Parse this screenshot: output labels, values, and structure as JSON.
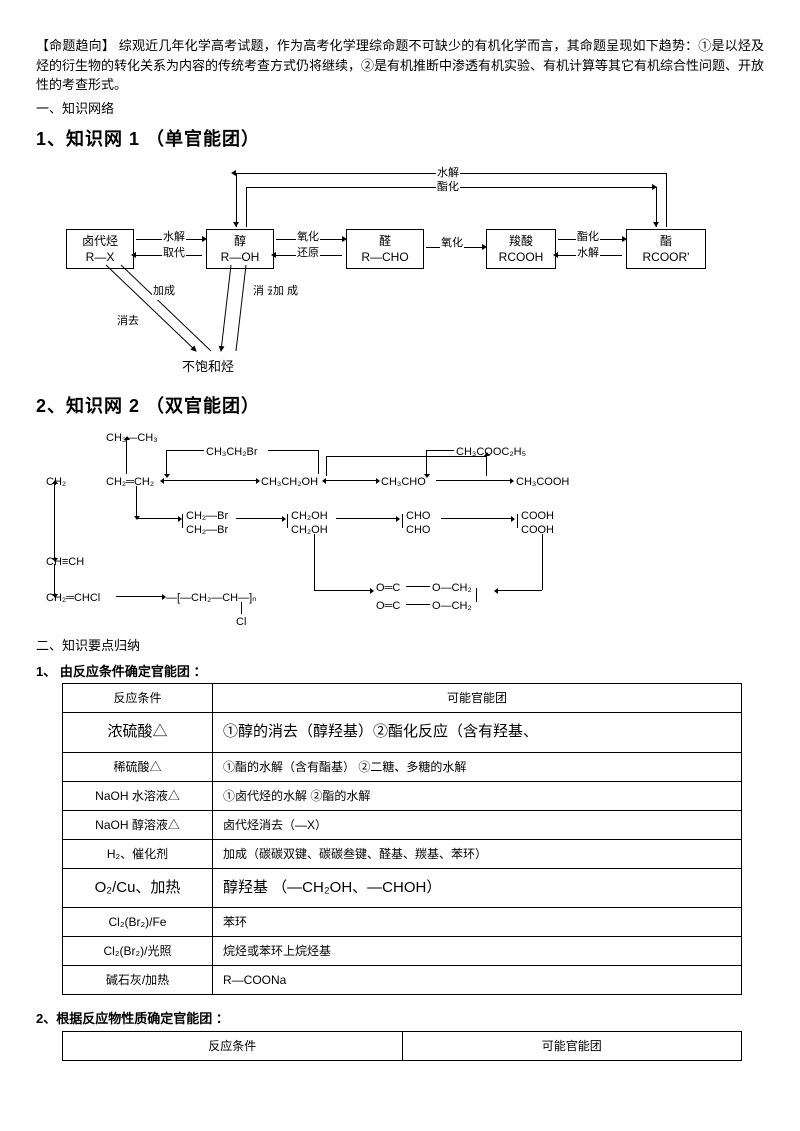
{
  "intro": "【命题趋向】 综观近几年化学高考试题，作为高考化学理综命题不可缺少的有机化学而言，其命题呈现如下趋势：①是以烃及烃的衍生物的转化关系为内容的传统考查方式仍将继续，②是有机推断中渗透有机实验、有机计算等其它有机综合性问题、开放性的考查形式。",
  "sec1_label": "一、知识网络",
  "net1_title": "1、知识网 1 （单官能团）",
  "net2_title": "2、知识网 2 （双官能团）",
  "boxes": {
    "halide_top": "卤代烃",
    "halide_bot": "R—X",
    "alcohol_top": "醇",
    "alcohol_bot": "R—OH",
    "aldehyde_top": "醛",
    "aldehyde_bot": "R—CHO",
    "acid_top": "羧酸",
    "acid_bot": "RCOOH",
    "ester_top": "酯",
    "ester_bot": "RCOOR'",
    "unsat": "不饱和烃"
  },
  "lbl": {
    "hydrolysis": "水解",
    "subst": "取代",
    "oxid": "氧化",
    "reduc": "还原",
    "esterif": "酯化",
    "addit": "加成",
    "elim": "消去",
    "elim2": "消\n去",
    "add2": "加\n成"
  },
  "d2_nodes": {
    "n1": "CH₃—CH₃",
    "n2": "CH₃CH₂Br",
    "n3": "CH₃COOC₂H₅",
    "n4": "CH₂═CH₂",
    "n5": "CH₃CH₂OH",
    "n6": "CH₃CHO",
    "n7": "CH₃COOH",
    "n8a": "CH₂—Br",
    "n8b": "CH₂—Br",
    "n9a": "CH₂OH",
    "n9b": "CH₂OH",
    "n10a": "CHO",
    "n10b": "CHO",
    "n11a": "COOH",
    "n11b": "COOH",
    "n12": "CH≡CH",
    "n13": "CH₂═CHCl",
    "n14": "—[—CH₂—CH—]ₙ",
    "n14sub": "Cl",
    "ringA": "O═C",
    "ringB": "O—CH₂",
    "ringC": "O═C",
    "ringD": "O—CH₂"
  },
  "sec2_label": "二、知识要点归纳",
  "t1_title": "1、 由反应条件确定官能团 ：",
  "t1": {
    "head_cond": "反应条件",
    "head_grp": "可能官能团",
    "rows": [
      {
        "cond": "浓硫酸△",
        "grp": "①醇的消去（醇羟基）②酯化反应（含有羟基、",
        "big": true
      },
      {
        "cond": "稀硫酸△",
        "grp": "①酯的水解（含有酯基） ②二糖、多糖的水解"
      },
      {
        "cond": "NaOH 水溶液△",
        "grp": "①卤代烃的水解   ②酯的水解"
      },
      {
        "cond": "NaOH 醇溶液△",
        "grp": "卤代烃消去（—X）"
      },
      {
        "cond": "H₂、催化剂",
        "grp": "加成（碳碳双键、碳碳叁键、醛基、羰基、苯环）"
      },
      {
        "cond": "O₂/Cu、加热",
        "grp": "醇羟基   （—CH₂OH、—CHOH）",
        "big": true
      },
      {
        "cond": "Cl₂(Br₂)/Fe",
        "grp": "苯环"
      },
      {
        "cond": "Cl₂(Br₂)/光照",
        "grp": "烷烃或苯环上烷烃基"
      },
      {
        "cond": "碱石灰/加热",
        "grp": "R—COONa"
      }
    ]
  },
  "t2_title": "2、根据反应物性质确定官能团 ：",
  "t2": {
    "head_cond": "反应条件",
    "head_grp": "可能官能团"
  }
}
